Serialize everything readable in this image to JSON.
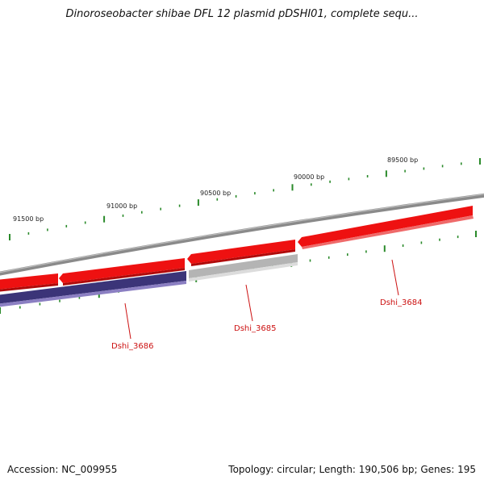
{
  "map": {
    "title": "Dinoroseobacter shibae DFL 12 plasmid pDSHI01, complete sequ...",
    "accession": "Accession: NC_009955",
    "summary": "Topology: circular; Length: 190,506 bp; Genes: 195",
    "colors": {
      "backbone": "#7a7a7a",
      "tick": "#2a8a2a",
      "gene_red": "#ee1111",
      "gene_blue": "#3b3478",
      "gene_gray": "#b4b4b4",
      "label_red": "#cc1111"
    }
  },
  "scale": {
    "labels": [
      {
        "text": "91500 bp"
      },
      {
        "text": "91000 bp"
      },
      {
        "text": "90500 bp"
      },
      {
        "text": "90000 bp"
      },
      {
        "text": "89500 bp"
      }
    ]
  },
  "genes": [
    {
      "name": "Dshi_3684"
    },
    {
      "name": "Dshi_3685"
    },
    {
      "name": "Dshi_3686"
    }
  ]
}
